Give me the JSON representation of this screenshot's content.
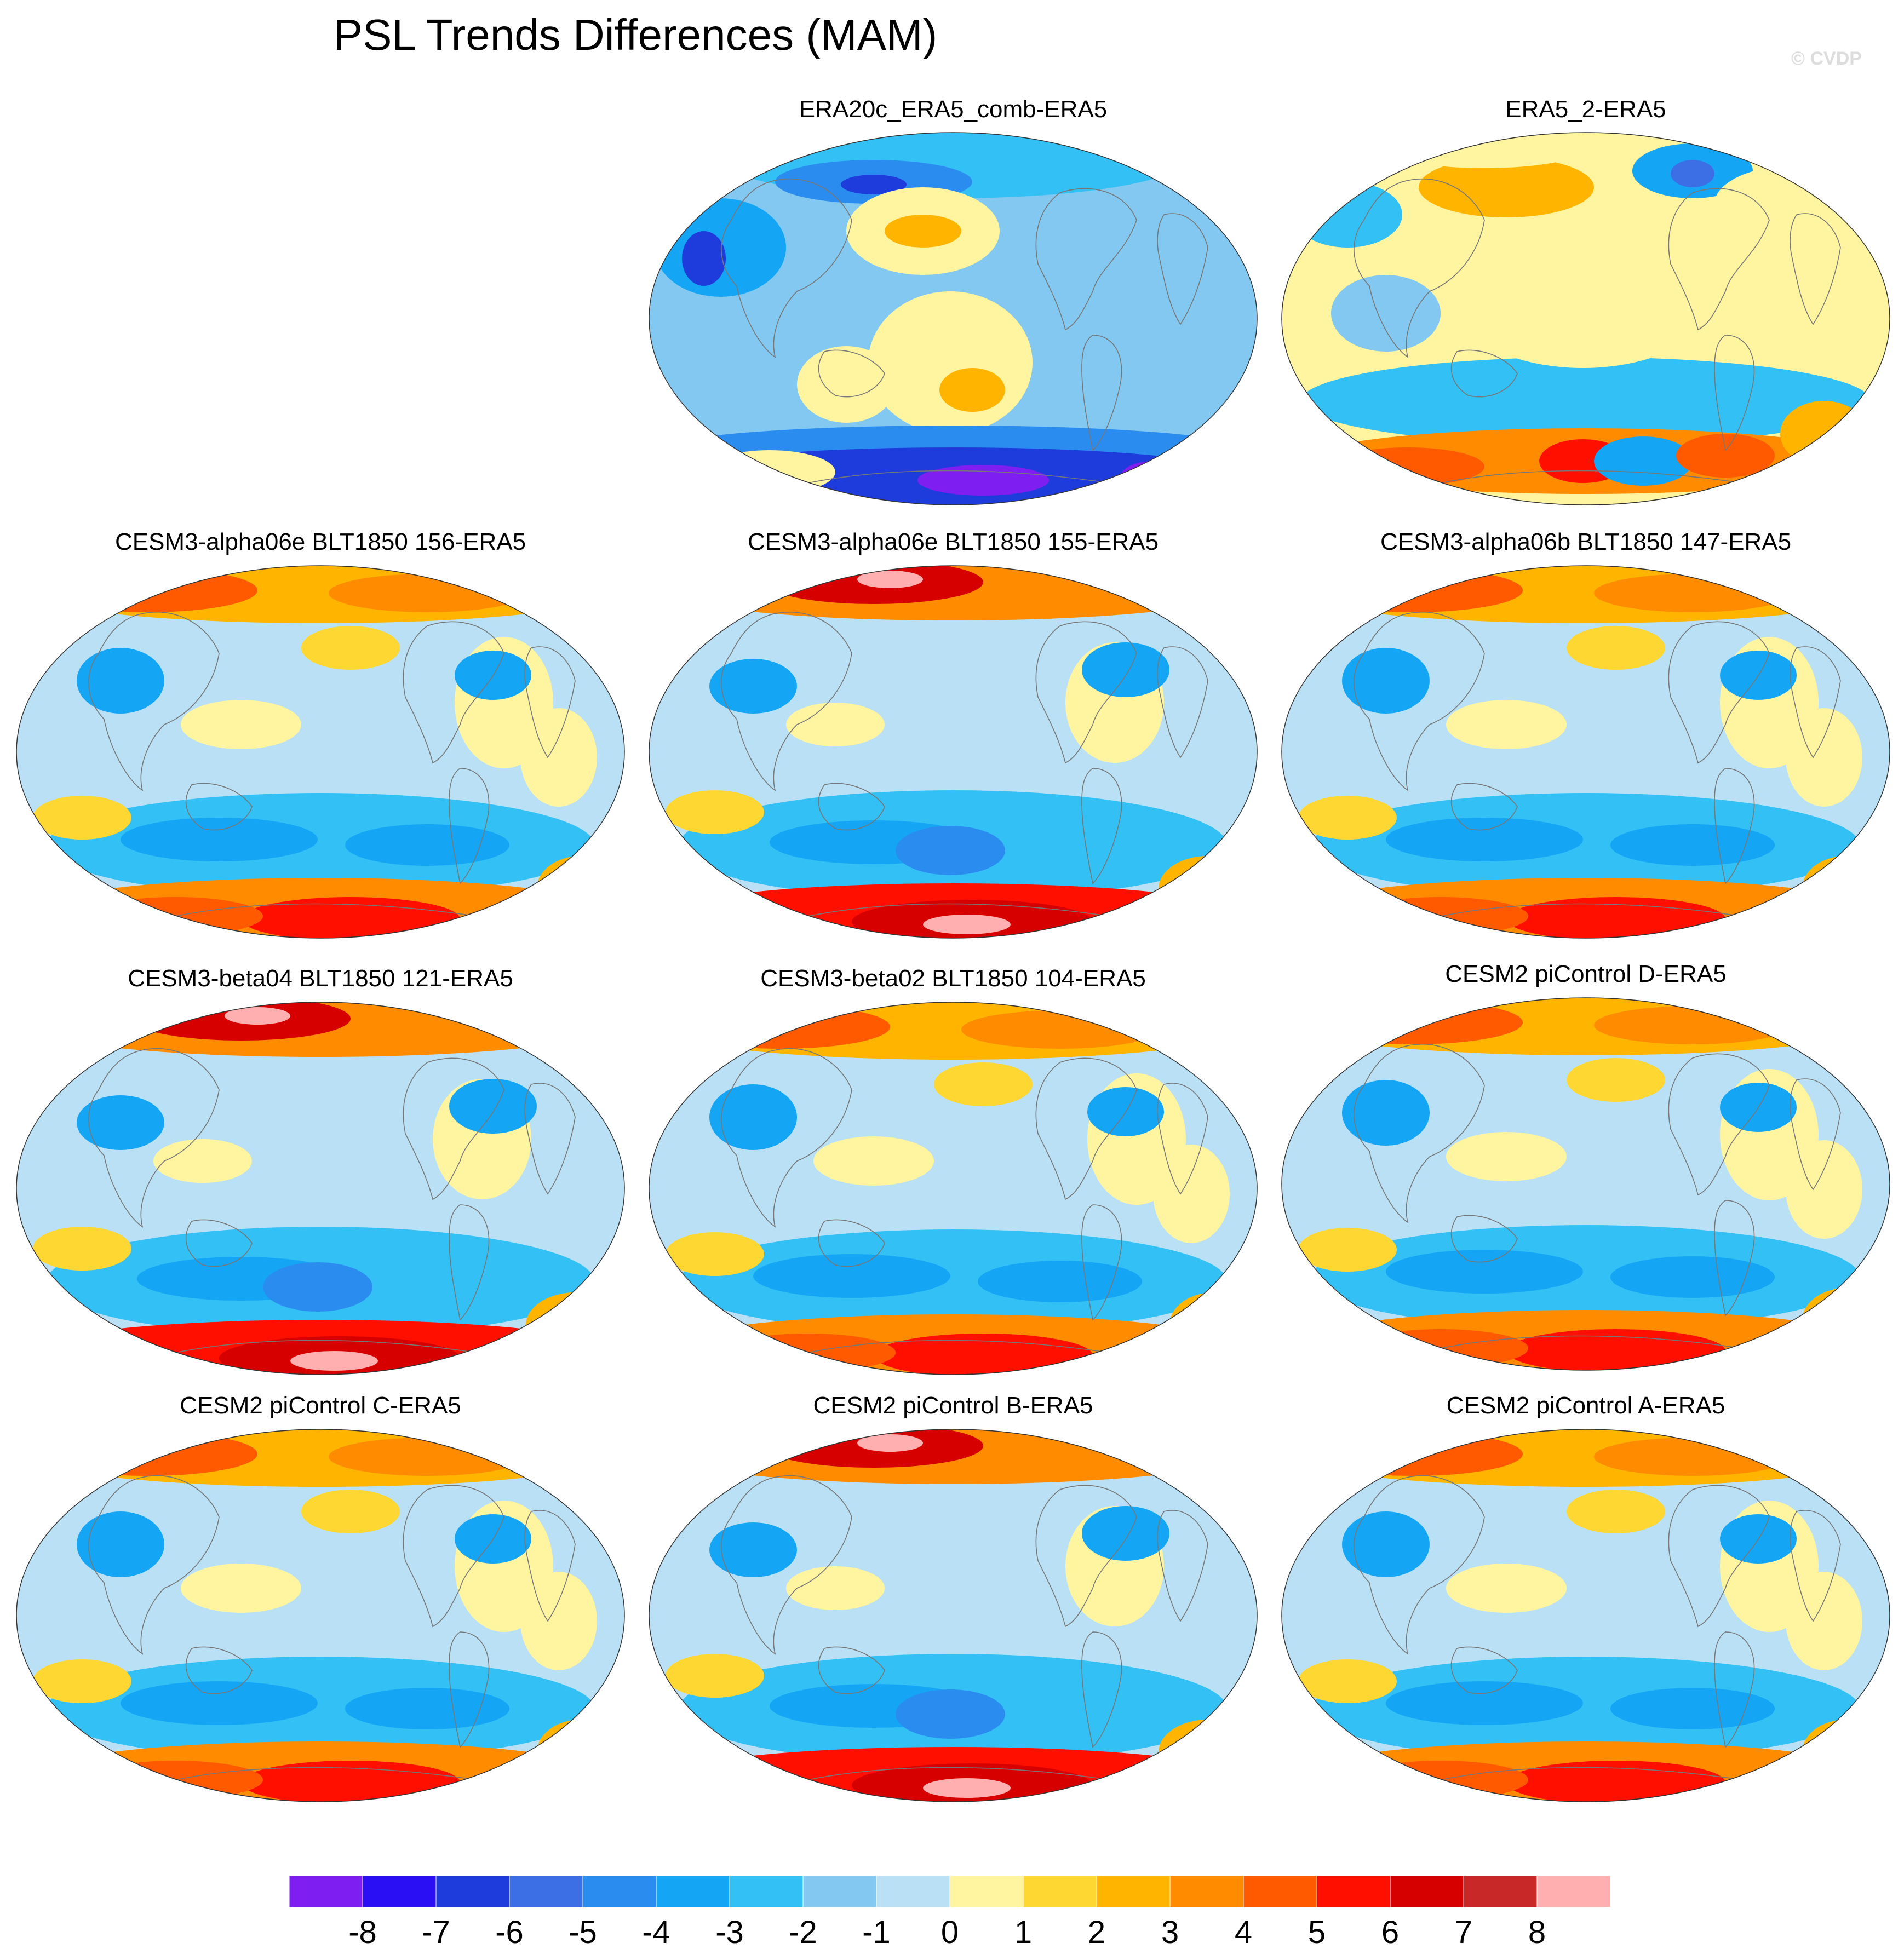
{
  "title": "PSL Trends Differences (MAM)",
  "credit": "© CVDP",
  "panels": [
    {
      "title": "ERA20c_ERA5_comb-ERA5",
      "pattern": "era20c"
    },
    {
      "title": "ERA5_2-ERA5",
      "pattern": "era5_2"
    },
    {
      "title": "CESM3-alpha06e BLT1850 156-ERA5",
      "pattern": "model"
    },
    {
      "title": "CESM3-alpha06e BLT1850 155-ERA5",
      "pattern": "model_strong"
    },
    {
      "title": "CESM3-alpha06b BLT1850 147-ERA5",
      "pattern": "model"
    },
    {
      "title": "CESM3-beta04 BLT1850 121-ERA5",
      "pattern": "model_strong"
    },
    {
      "title": "CESM3-beta02 BLT1850 104-ERA5",
      "pattern": "model"
    },
    {
      "title": "CESM2 piControl D-ERA5",
      "pattern": "model"
    },
    {
      "title": "CESM2 piControl C-ERA5",
      "pattern": "model"
    },
    {
      "title": "CESM2 piControl B-ERA5",
      "pattern": "model_strong"
    },
    {
      "title": "CESM2 piControl A-ERA5",
      "pattern": "model"
    }
  ],
  "colorbar": {
    "labels": [
      "-8",
      "-7",
      "-6",
      "-5",
      "-4",
      "-3",
      "-2",
      "-1",
      "0",
      "1",
      "2",
      "3",
      "4",
      "5",
      "6",
      "7",
      "8"
    ],
    "colors": [
      "#7f1ef0",
      "#2a0ff5",
      "#1e3cdc",
      "#3c6ee6",
      "#2b8cf0",
      "#15a5f5",
      "#32c0f5",
      "#82c8f0",
      "#b9e0f5",
      "#fff5a0",
      "#ffd732",
      "#ffb400",
      "#ff8c00",
      "#ff5a00",
      "#ff0f00",
      "#d70000",
      "#c82828",
      "#ffafaf"
    ]
  }
}
